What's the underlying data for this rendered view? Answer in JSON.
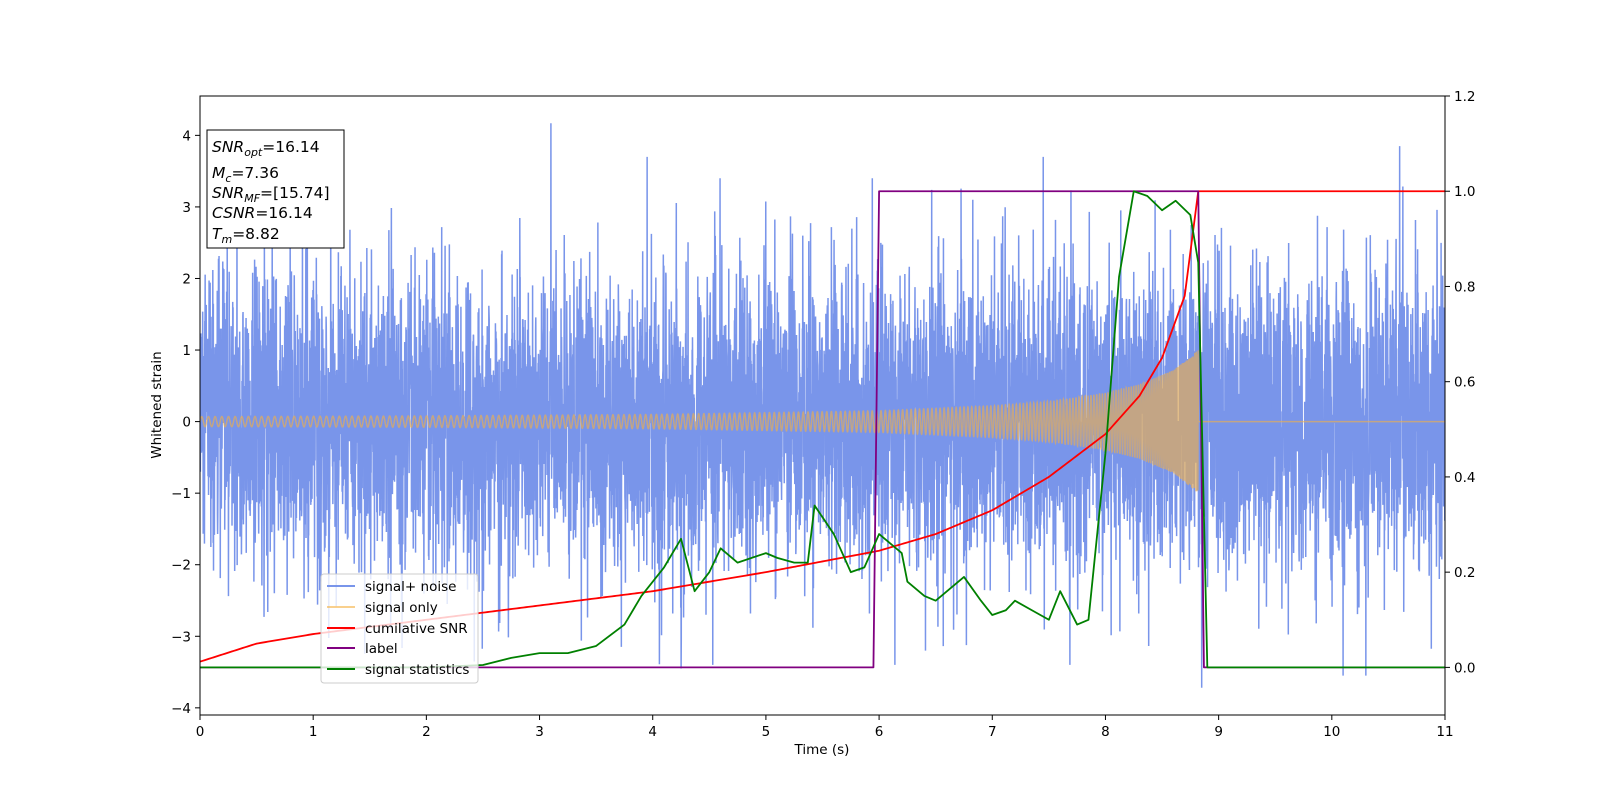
{
  "chart_data": {
    "type": "line",
    "xlabel": "Time (s)",
    "ylabel": "Whitened strain",
    "xlim": [
      0,
      11
    ],
    "ylim_left": [
      -4.1,
      4.55
    ],
    "ylim_right": [
      -0.1,
      1.2
    ],
    "x_ticks": [
      0,
      1,
      2,
      3,
      4,
      5,
      6,
      7,
      8,
      9,
      10,
      11
    ],
    "y_ticks_left": [
      -4,
      -3,
      -2,
      -1,
      0,
      1,
      2,
      3,
      4
    ],
    "y_ticks_right": [
      0.0,
      0.2,
      0.4,
      0.6,
      0.8,
      1.0,
      1.2
    ],
    "grid": false,
    "legend_position": "lower-left",
    "annotation": {
      "lines": [
        {
          "main": "SNR",
          "sub": "opt",
          "rest": "=16.14"
        },
        {
          "main": "M",
          "sub": "c",
          "rest": "=7.36"
        },
        {
          "main": "SNR",
          "sub": "MF",
          "rest": "=[15.74]"
        },
        {
          "main": "CSNR",
          "sub": "",
          "rest": "=16.14"
        },
        {
          "main": "T",
          "sub": "m",
          "rest": "=8.82"
        }
      ]
    },
    "series": [
      {
        "name": "signal+ noise",
        "axis": "left",
        "color": "#6a8ae8",
        "description": "Gaussian-like noise, roughly std 1, range about -3.5 to 4.2 over 0–11 s",
        "peaks": [
          [
            3.1,
            4.17
          ],
          [
            3.95,
            3.7
          ],
          [
            7.45,
            3.7
          ],
          [
            10.6,
            3.85
          ],
          [
            4.25,
            -3.45
          ],
          [
            8.85,
            -3.72
          ],
          [
            10.1,
            -3.55
          ],
          [
            10.3,
            -3.55
          ]
        ]
      },
      {
        "name": "signal only",
        "axis": "left",
        "color": "#f5b041",
        "description": "Chirp: amplitude grows from about 0.07 near 0 s to about 1.0 at 8.82 s, then zero",
        "envelope": [
          [
            0,
            0.07
          ],
          [
            2,
            0.08
          ],
          [
            4,
            0.1
          ],
          [
            6,
            0.15
          ],
          [
            7,
            0.22
          ],
          [
            7.5,
            0.28
          ],
          [
            8,
            0.4
          ],
          [
            8.3,
            0.52
          ],
          [
            8.6,
            0.72
          ],
          [
            8.82,
            1.0
          ]
        ],
        "merger_time": 8.82
      },
      {
        "name": "cumilative SNR",
        "axis": "right",
        "color": "#ff0000",
        "points": [
          [
            0,
            0.012
          ],
          [
            0.5,
            0.05
          ],
          [
            1,
            0.07
          ],
          [
            2,
            0.1
          ],
          [
            3,
            0.13
          ],
          [
            4,
            0.16
          ],
          [
            5,
            0.2
          ],
          [
            6,
            0.245
          ],
          [
            6.5,
            0.28
          ],
          [
            7,
            0.33
          ],
          [
            7.5,
            0.4
          ],
          [
            8,
            0.49
          ],
          [
            8.3,
            0.57
          ],
          [
            8.5,
            0.65
          ],
          [
            8.7,
            0.78
          ],
          [
            8.82,
            1.0
          ],
          [
            11,
            1.0
          ]
        ]
      },
      {
        "name": "label",
        "axis": "right",
        "color": "#800080",
        "points": [
          [
            0,
            0.0
          ],
          [
            5.95,
            0.0
          ],
          [
            6.0,
            1.0
          ],
          [
            8.82,
            1.0
          ],
          [
            8.87,
            0.0
          ],
          [
            11,
            0.0
          ]
        ]
      },
      {
        "name": "signal statistics",
        "axis": "right",
        "color": "#008000",
        "points": [
          [
            0,
            0.0
          ],
          [
            1,
            0.0
          ],
          [
            2,
            0.0
          ],
          [
            2.5,
            0.005
          ],
          [
            2.75,
            0.02
          ],
          [
            3.0,
            0.03
          ],
          [
            3.25,
            0.03
          ],
          [
            3.5,
            0.045
          ],
          [
            3.75,
            0.09
          ],
          [
            3.9,
            0.15
          ],
          [
            4.0,
            0.18
          ],
          [
            4.1,
            0.21
          ],
          [
            4.25,
            0.27
          ],
          [
            4.37,
            0.16
          ],
          [
            4.5,
            0.2
          ],
          [
            4.6,
            0.25
          ],
          [
            4.75,
            0.22
          ],
          [
            5.0,
            0.24
          ],
          [
            5.1,
            0.23
          ],
          [
            5.25,
            0.22
          ],
          [
            5.37,
            0.22
          ],
          [
            5.43,
            0.34
          ],
          [
            5.6,
            0.28
          ],
          [
            5.75,
            0.2
          ],
          [
            5.87,
            0.21
          ],
          [
            6.0,
            0.28
          ],
          [
            6.1,
            0.26
          ],
          [
            6.2,
            0.24
          ],
          [
            6.25,
            0.18
          ],
          [
            6.4,
            0.15
          ],
          [
            6.5,
            0.14
          ],
          [
            6.6,
            0.16
          ],
          [
            6.75,
            0.19
          ],
          [
            6.9,
            0.14
          ],
          [
            7.0,
            0.11
          ],
          [
            7.12,
            0.12
          ],
          [
            7.2,
            0.14
          ],
          [
            7.35,
            0.12
          ],
          [
            7.5,
            0.1
          ],
          [
            7.6,
            0.16
          ],
          [
            7.75,
            0.09
          ],
          [
            7.85,
            0.1
          ],
          [
            8.0,
            0.45
          ],
          [
            8.12,
            0.82
          ],
          [
            8.25,
            1.0
          ],
          [
            8.37,
            0.99
          ],
          [
            8.5,
            0.96
          ],
          [
            8.62,
            0.98
          ],
          [
            8.75,
            0.95
          ],
          [
            8.82,
            0.85
          ],
          [
            8.9,
            0.0
          ],
          [
            11,
            0.0
          ]
        ]
      }
    ]
  }
}
